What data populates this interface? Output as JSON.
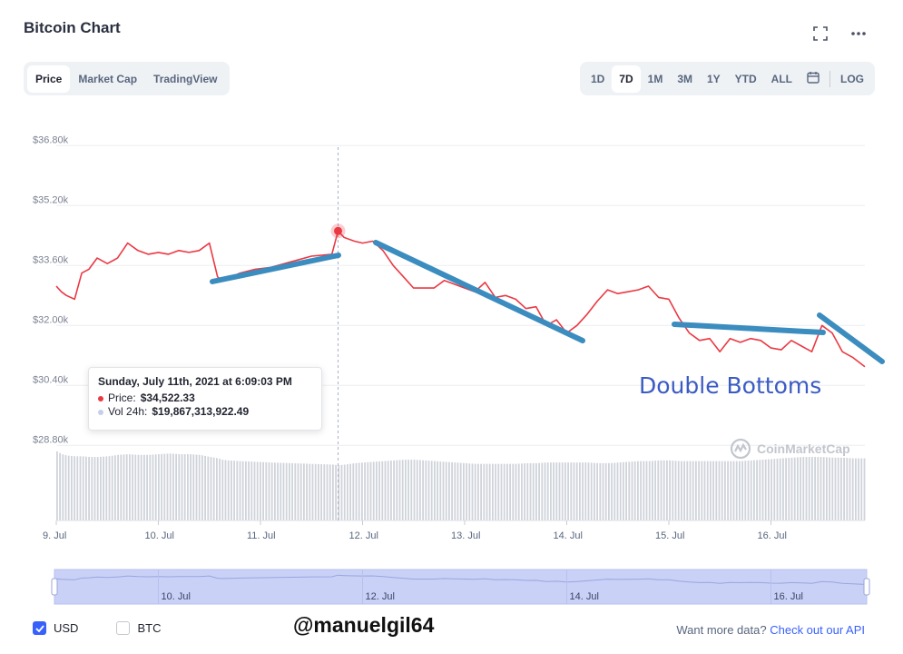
{
  "header": {
    "title": "Bitcoin Chart"
  },
  "icons": {
    "fullscreen": "fullscreen-icon",
    "more": "more-options-icon",
    "calendar": "calendar-icon"
  },
  "tabs_left": [
    "Price",
    "Market Cap",
    "TradingView"
  ],
  "tabs_left_active": "Price",
  "tabs_right": [
    "1D",
    "7D",
    "1M",
    "3M",
    "1Y",
    "YTD",
    "ALL"
  ],
  "tabs_right_active": "7D",
  "log_label": "LOG",
  "tooltip": {
    "date": "Sunday, July 11th, 2021 at 6:09:03 PM",
    "price_label": "Price:",
    "price_value": "$34,522.33",
    "vol_label": "Vol 24h:",
    "vol_value": "$19,867,313,922.49"
  },
  "annotation": "Double Bottoms",
  "watermark": "CoinMarketCap",
  "bottom": {
    "usd_label": "USD",
    "usd_checked": true,
    "btc_label": "BTC",
    "btc_checked": false,
    "handle": "@manuelgil64",
    "more_text": "Want more data?",
    "more_link": "Check out our API"
  },
  "colors": {
    "price_line": "#ea3943",
    "volume_bar": "#cfd3da",
    "trend_line": "#3b8cbf",
    "navigator_fill": "#c9d1f7",
    "accent": "#3861fb"
  },
  "chart_data": {
    "type": "line",
    "title": "",
    "ylim": [
      28000,
      37600
    ],
    "y_ticks": [
      "$36.80k",
      "$35.20k",
      "$33.60k",
      "$32.00k",
      "$30.40k",
      "$28.80k"
    ],
    "y_tick_values": [
      36800,
      35200,
      33600,
      32000,
      30400,
      28800
    ],
    "x_ticks": [
      "9. Jul",
      "10. Jul",
      "11. Jul",
      "12. Jul",
      "13. Jul",
      "14. Jul",
      "15. Jul",
      "16. Jul"
    ],
    "x_tick_days": [
      9,
      10,
      11,
      12,
      13,
      14,
      15,
      16
    ],
    "xlim_days": [
      9,
      16.92
    ],
    "navigator_ticks": [
      "10. Jul",
      "12. Jul",
      "14. Jul",
      "16. Jul"
    ],
    "navigator_tick_days": [
      10,
      12,
      14,
      16
    ],
    "hover_day": 11.76,
    "series": [
      {
        "x_days": [
          9.0,
          9.05,
          9.1,
          9.18,
          9.25,
          9.32,
          9.4,
          9.5,
          9.6,
          9.7,
          9.8,
          9.9,
          10.0,
          10.1,
          10.2,
          10.3,
          10.4,
          10.5,
          10.58,
          10.62,
          10.68,
          10.8,
          10.95,
          11.1,
          11.3,
          11.5,
          11.7,
          11.76,
          11.82,
          11.92,
          12.0,
          12.1,
          12.2,
          12.3,
          12.4,
          12.5,
          12.6,
          12.7,
          12.8,
          12.9,
          13.0,
          13.1,
          13.2,
          13.3,
          13.4,
          13.5,
          13.6,
          13.7,
          13.8,
          13.9,
          14.0,
          14.1,
          14.2,
          14.3,
          14.4,
          14.5,
          14.6,
          14.7,
          14.8,
          14.9,
          15.0,
          15.1,
          15.2,
          15.3,
          15.4,
          15.5,
          15.6,
          15.7,
          15.8,
          15.9,
          16.0,
          16.1,
          16.2,
          16.3,
          16.4,
          16.5,
          16.6,
          16.7,
          16.8,
          16.92
        ],
        "values": [
          33050,
          32900,
          32800,
          32700,
          33400,
          33500,
          33800,
          33650,
          33800,
          34200,
          34000,
          33900,
          33950,
          33900,
          34000,
          33950,
          34000,
          34200,
          33300,
          33200,
          33250,
          33400,
          33500,
          33550,
          33700,
          33850,
          33900,
          34522,
          34350,
          34250,
          34200,
          34250,
          34000,
          33600,
          33300,
          33000,
          33000,
          33000,
          33200,
          33100,
          33000,
          32900,
          33150,
          32750,
          32800,
          32700,
          32450,
          32500,
          32000,
          32150,
          31800,
          32000,
          32300,
          32650,
          32950,
          32850,
          32900,
          32950,
          33050,
          32750,
          32700,
          32200,
          31800,
          31600,
          31650,
          31300,
          31650,
          31550,
          31650,
          31600,
          31400,
          31350,
          31600,
          31450,
          31300,
          32000,
          31800,
          31300,
          31150,
          30900
        ],
        "volume": [
          1.0,
          0.96,
          0.94,
          0.93,
          0.93,
          0.92,
          0.92,
          0.93,
          0.95,
          0.96,
          0.95,
          0.95,
          0.96,
          0.97,
          0.96,
          0.96,
          0.95,
          0.92,
          0.9,
          0.88,
          0.87,
          0.86,
          0.85,
          0.84,
          0.83,
          0.82,
          0.81,
          0.8,
          0.81,
          0.83,
          0.84,
          0.85,
          0.86,
          0.87,
          0.88,
          0.88,
          0.87,
          0.86,
          0.85,
          0.84,
          0.83,
          0.82,
          0.82,
          0.82,
          0.82,
          0.82,
          0.83,
          0.83,
          0.84,
          0.84,
          0.84,
          0.84,
          0.84,
          0.83,
          0.83,
          0.84,
          0.85,
          0.86,
          0.86,
          0.87,
          0.87,
          0.86,
          0.86,
          0.86,
          0.86,
          0.86,
          0.86,
          0.86,
          0.87,
          0.88,
          0.89,
          0.9,
          0.91,
          0.92,
          0.92,
          0.92,
          0.91,
          0.91,
          0.9,
          0.9
        ]
      }
    ]
  }
}
